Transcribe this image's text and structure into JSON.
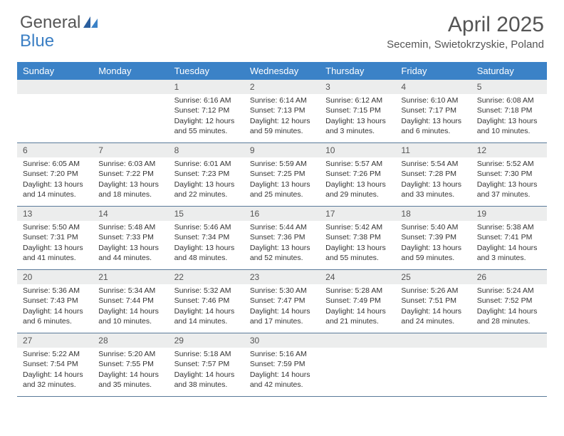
{
  "logo": {
    "text1": "General",
    "text2": "Blue"
  },
  "title": "April 2025",
  "location": "Secemin, Swietokrzyskie, Poland",
  "colors": {
    "header_bg": "#3b82c7",
    "header_text": "#ffffff",
    "daynum_bg": "#eceded",
    "border": "#5a7a9a",
    "text": "#333333",
    "title_color": "#555555"
  },
  "day_names": [
    "Sunday",
    "Monday",
    "Tuesday",
    "Wednesday",
    "Thursday",
    "Friday",
    "Saturday"
  ],
  "weeks": [
    [
      {
        "n": "",
        "sr": "",
        "ss": "",
        "dl": ""
      },
      {
        "n": "",
        "sr": "",
        "ss": "",
        "dl": ""
      },
      {
        "n": "1",
        "sr": "6:16 AM",
        "ss": "7:12 PM",
        "dl": "12 hours and 55 minutes."
      },
      {
        "n": "2",
        "sr": "6:14 AM",
        "ss": "7:13 PM",
        "dl": "12 hours and 59 minutes."
      },
      {
        "n": "3",
        "sr": "6:12 AM",
        "ss": "7:15 PM",
        "dl": "13 hours and 3 minutes."
      },
      {
        "n": "4",
        "sr": "6:10 AM",
        "ss": "7:17 PM",
        "dl": "13 hours and 6 minutes."
      },
      {
        "n": "5",
        "sr": "6:08 AM",
        "ss": "7:18 PM",
        "dl": "13 hours and 10 minutes."
      }
    ],
    [
      {
        "n": "6",
        "sr": "6:05 AM",
        "ss": "7:20 PM",
        "dl": "13 hours and 14 minutes."
      },
      {
        "n": "7",
        "sr": "6:03 AM",
        "ss": "7:22 PM",
        "dl": "13 hours and 18 minutes."
      },
      {
        "n": "8",
        "sr": "6:01 AM",
        "ss": "7:23 PM",
        "dl": "13 hours and 22 minutes."
      },
      {
        "n": "9",
        "sr": "5:59 AM",
        "ss": "7:25 PM",
        "dl": "13 hours and 25 minutes."
      },
      {
        "n": "10",
        "sr": "5:57 AM",
        "ss": "7:26 PM",
        "dl": "13 hours and 29 minutes."
      },
      {
        "n": "11",
        "sr": "5:54 AM",
        "ss": "7:28 PM",
        "dl": "13 hours and 33 minutes."
      },
      {
        "n": "12",
        "sr": "5:52 AM",
        "ss": "7:30 PM",
        "dl": "13 hours and 37 minutes."
      }
    ],
    [
      {
        "n": "13",
        "sr": "5:50 AM",
        "ss": "7:31 PM",
        "dl": "13 hours and 41 minutes."
      },
      {
        "n": "14",
        "sr": "5:48 AM",
        "ss": "7:33 PM",
        "dl": "13 hours and 44 minutes."
      },
      {
        "n": "15",
        "sr": "5:46 AM",
        "ss": "7:34 PM",
        "dl": "13 hours and 48 minutes."
      },
      {
        "n": "16",
        "sr": "5:44 AM",
        "ss": "7:36 PM",
        "dl": "13 hours and 52 minutes."
      },
      {
        "n": "17",
        "sr": "5:42 AM",
        "ss": "7:38 PM",
        "dl": "13 hours and 55 minutes."
      },
      {
        "n": "18",
        "sr": "5:40 AM",
        "ss": "7:39 PM",
        "dl": "13 hours and 59 minutes."
      },
      {
        "n": "19",
        "sr": "5:38 AM",
        "ss": "7:41 PM",
        "dl": "14 hours and 3 minutes."
      }
    ],
    [
      {
        "n": "20",
        "sr": "5:36 AM",
        "ss": "7:43 PM",
        "dl": "14 hours and 6 minutes."
      },
      {
        "n": "21",
        "sr": "5:34 AM",
        "ss": "7:44 PM",
        "dl": "14 hours and 10 minutes."
      },
      {
        "n": "22",
        "sr": "5:32 AM",
        "ss": "7:46 PM",
        "dl": "14 hours and 14 minutes."
      },
      {
        "n": "23",
        "sr": "5:30 AM",
        "ss": "7:47 PM",
        "dl": "14 hours and 17 minutes."
      },
      {
        "n": "24",
        "sr": "5:28 AM",
        "ss": "7:49 PM",
        "dl": "14 hours and 21 minutes."
      },
      {
        "n": "25",
        "sr": "5:26 AM",
        "ss": "7:51 PM",
        "dl": "14 hours and 24 minutes."
      },
      {
        "n": "26",
        "sr": "5:24 AM",
        "ss": "7:52 PM",
        "dl": "14 hours and 28 minutes."
      }
    ],
    [
      {
        "n": "27",
        "sr": "5:22 AM",
        "ss": "7:54 PM",
        "dl": "14 hours and 32 minutes."
      },
      {
        "n": "28",
        "sr": "5:20 AM",
        "ss": "7:55 PM",
        "dl": "14 hours and 35 minutes."
      },
      {
        "n": "29",
        "sr": "5:18 AM",
        "ss": "7:57 PM",
        "dl": "14 hours and 38 minutes."
      },
      {
        "n": "30",
        "sr": "5:16 AM",
        "ss": "7:59 PM",
        "dl": "14 hours and 42 minutes."
      },
      {
        "n": "",
        "sr": "",
        "ss": "",
        "dl": ""
      },
      {
        "n": "",
        "sr": "",
        "ss": "",
        "dl": ""
      },
      {
        "n": "",
        "sr": "",
        "ss": "",
        "dl": ""
      }
    ]
  ],
  "labels": {
    "sunrise": "Sunrise:",
    "sunset": "Sunset:",
    "daylight": "Daylight:"
  }
}
